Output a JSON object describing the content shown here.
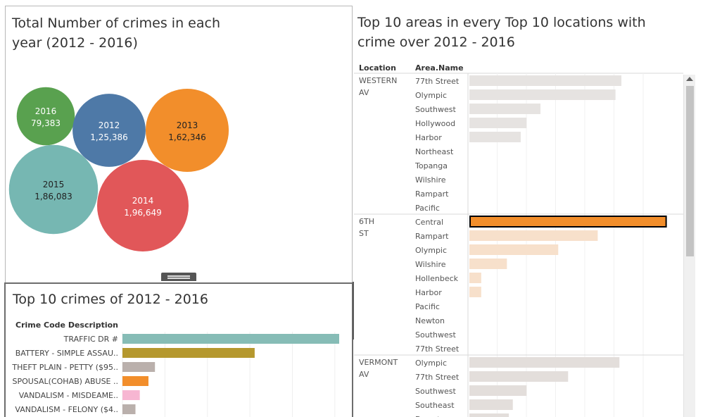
{
  "bubble_chart": {
    "title": "Total Number of crimes in each year (2012 - 2016)",
    "chart_data": {
      "type": "bubble",
      "title": "Total Number of crimes in each year (2012 - 2016)",
      "items": [
        {
          "label": "2016",
          "value": 79383,
          "value_label": "79,383",
          "color": "#59a14f",
          "text_color": "#ffffff"
        },
        {
          "label": "2012",
          "value": 125386,
          "value_label": "1,25,386",
          "color": "#4e79a7",
          "text_color": "#ffffff"
        },
        {
          "label": "2013",
          "value": 162346,
          "value_label": "1,62,346",
          "color": "#f28e2b",
          "text_color": "#222222"
        },
        {
          "label": "2015",
          "value": 186083,
          "value_label": "1,86,083",
          "color": "#76b7b2",
          "text_color": "#222222"
        },
        {
          "label": "2014",
          "value": 196649,
          "value_label": "1,96,649",
          "color": "#e15759",
          "text_color": "#ffffff"
        }
      ]
    }
  },
  "crimes_chart": {
    "title": "Top 10 crimes of 2012 - 2016",
    "chart_data": {
      "type": "bar",
      "orientation": "horizontal",
      "title": "Top 10 crimes of 2012 - 2016",
      "ylabel": "Crime Code Description",
      "categories": [
        "TRAFFIC DR #",
        "BATTERY - SIMPLE ASSAU..",
        "THEFT PLAIN - PETTY ($95..",
        "SPOUSAL(COHAB) ABUSE ..",
        "VANDALISM - MISDEAME..",
        "VANDALISM - FELONY ($4.."
      ],
      "values": [
        100,
        61,
        15,
        12,
        8,
        6
      ],
      "colors": [
        "#86bcb6",
        "#b5982e",
        "#bab0ac",
        "#f28e2b",
        "#f7b6d2",
        "#bab0ac"
      ],
      "xlim": [
        0,
        100
      ]
    }
  },
  "areas_chart": {
    "title": "Top 10 areas in every Top 10 locations with crime over 2012 - 2016",
    "chart_data": {
      "type": "bar",
      "orientation": "horizontal",
      "title": "Top 10 areas in every Top 10 locations with crime over 2012 - 2016",
      "column_headers": [
        "Location",
        "Area.Name"
      ],
      "xlim": [
        0,
        100
      ],
      "groups": [
        {
          "location": [
            "WESTERN",
            "AV"
          ],
          "color": "#e6e3e1",
          "areas": [
            "77th Street",
            "Olympic",
            "Southwest",
            "Hollywood",
            "Harbor",
            "Northeast",
            "Topanga",
            "Wilshire",
            "Rampart",
            "Pacific"
          ],
          "values": [
            77,
            74,
            36,
            29,
            26,
            0,
            0,
            0,
            0,
            0
          ]
        },
        {
          "location": [
            "6TH",
            "ST"
          ],
          "color": "#f7e0cb",
          "highlight_color": "#f28e2b",
          "highlight_index": 0,
          "areas": [
            "Central",
            "Rampart",
            "Olympic",
            "Wilshire",
            "Hollenbeck",
            "Harbor",
            "Pacific",
            "Newton",
            "Southwest",
            "77th Street"
          ],
          "values": [
            100,
            65,
            45,
            19,
            6,
            6,
            0,
            0,
            0,
            0
          ]
        },
        {
          "location": [
            "VERMONT",
            "AV"
          ],
          "color": "#e3dedb",
          "areas": [
            "Olympic",
            "77th Street",
            "Southwest",
            "Southeast",
            "Downtown"
          ],
          "values": [
            76,
            50,
            29,
            22,
            20
          ]
        }
      ]
    }
  },
  "toolbar": {
    "icons": [
      "close-icon",
      "popout-icon",
      "filter-icon",
      "dropdown-icon"
    ],
    "glyphs": [
      "✕",
      "⇱",
      "",
      "▾"
    ]
  }
}
